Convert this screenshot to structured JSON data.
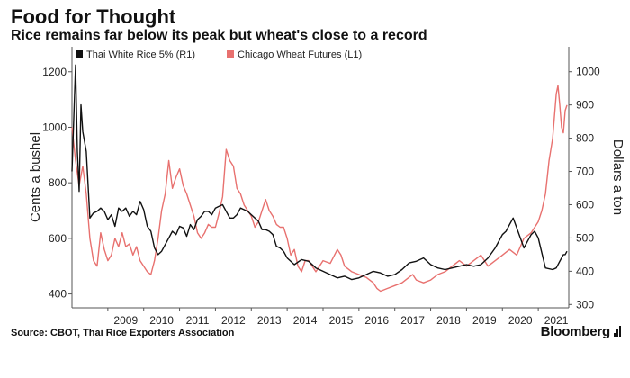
{
  "header": {
    "title": "Food for Thought",
    "subtitle": "Rice remains far below its peak but wheat's close to a record"
  },
  "footer": {
    "source": "Source: CBOT, Thai Rice Exporters Association",
    "brand": "Bloomberg"
  },
  "colors": {
    "rice": "#111111",
    "wheat": "#e8716f",
    "axis": "#555555"
  },
  "chart_data": {
    "type": "line",
    "title": "Food for Thought",
    "subtitle": "Rice remains far below its peak but wheat's close to a record",
    "x_range": [
      2008.0,
      2021.85
    ],
    "x_ticks": [
      2009,
      2010,
      2011,
      2012,
      2013,
      2014,
      2015,
      2016,
      2017,
      2018,
      2019,
      2020,
      2021
    ],
    "y_left": {
      "label": "Cents a bushel",
      "range": [
        350,
        1290
      ],
      "ticks": [
        400,
        600,
        800,
        1000,
        1200
      ]
    },
    "y_right": {
      "label": "Dollars a ton",
      "range": [
        290,
        1075
      ],
      "ticks": [
        300,
        400,
        500,
        600,
        700,
        800,
        900,
        1000
      ]
    },
    "legend": {
      "position": "top-left",
      "entries": [
        "Thai White Rice 5% (R1)",
        "Chicago Wheat Futures (L1)"
      ]
    },
    "series": [
      {
        "name": "Thai White Rice 5% (R1)",
        "axis": "right",
        "x": [
          2008.0,
          2008.1,
          2008.15,
          2008.2,
          2008.25,
          2008.3,
          2008.4,
          2008.5,
          2008.6,
          2008.7,
          2008.8,
          2008.9,
          2009.0,
          2009.1,
          2009.2,
          2009.3,
          2009.4,
          2009.5,
          2009.6,
          2009.7,
          2009.8,
          2009.9,
          2010.0,
          2010.1,
          2010.2,
          2010.3,
          2010.4,
          2010.5,
          2010.6,
          2010.7,
          2010.8,
          2010.9,
          2011.0,
          2011.1,
          2011.2,
          2011.3,
          2011.4,
          2011.5,
          2011.6,
          2011.7,
          2011.8,
          2011.9,
          2012.0,
          2012.1,
          2012.2,
          2012.3,
          2012.4,
          2012.5,
          2012.6,
          2012.7,
          2012.8,
          2012.9,
          2013.0,
          2013.1,
          2013.2,
          2013.3,
          2013.4,
          2013.5,
          2013.6,
          2013.7,
          2013.8,
          2013.9,
          2014.0,
          2014.2,
          2014.4,
          2014.6,
          2014.8,
          2015.0,
          2015.2,
          2015.4,
          2015.6,
          2015.8,
          2016.0,
          2016.2,
          2016.4,
          2016.6,
          2016.8,
          2017.0,
          2017.2,
          2017.4,
          2017.6,
          2017.8,
          2018.0,
          2018.2,
          2018.4,
          2018.6,
          2018.8,
          2019.0,
          2019.2,
          2019.4,
          2019.6,
          2019.8,
          2020.0,
          2020.1,
          2020.2,
          2020.3,
          2020.4,
          2020.5,
          2020.6,
          2020.7,
          2020.8,
          2020.9,
          2021.0,
          2021.2,
          2021.4,
          2021.5,
          2021.6,
          2021.7,
          2021.75,
          2021.8
        ],
        "values": [
          700,
          1020,
          760,
          640,
          900,
          820,
          760,
          560,
          575,
          580,
          590,
          580,
          555,
          570,
          535,
          590,
          580,
          590,
          565,
          580,
          570,
          610,
          585,
          535,
          520,
          470,
          450,
          460,
          480,
          500,
          520,
          510,
          535,
          530,
          505,
          540,
          525,
          555,
          565,
          580,
          580,
          570,
          590,
          595,
          600,
          580,
          560,
          560,
          570,
          590,
          585,
          580,
          570,
          560,
          550,
          525,
          525,
          520,
          510,
          475,
          470,
          460,
          440,
          420,
          435,
          430,
          410,
          400,
          390,
          380,
          385,
          375,
          380,
          390,
          400,
          395,
          385,
          390,
          405,
          425,
          430,
          440,
          420,
          410,
          405,
          410,
          415,
          420,
          415,
          420,
          440,
          470,
          510,
          520,
          540,
          560,
          530,
          500,
          470,
          490,
          510,
          520,
          500,
          410,
          405,
          410,
          430,
          450,
          450,
          460
        ]
      },
      {
        "name": "Chicago Wheat Futures (L1)",
        "axis": "left",
        "x": [
          2008.0,
          2008.1,
          2008.2,
          2008.3,
          2008.4,
          2008.5,
          2008.6,
          2008.7,
          2008.8,
          2008.9,
          2009.0,
          2009.1,
          2009.2,
          2009.3,
          2009.4,
          2009.5,
          2009.6,
          2009.7,
          2009.8,
          2009.9,
          2010.0,
          2010.1,
          2010.2,
          2010.3,
          2010.4,
          2010.5,
          2010.6,
          2010.7,
          2010.8,
          2010.9,
          2011.0,
          2011.1,
          2011.2,
          2011.3,
          2011.4,
          2011.5,
          2011.6,
          2011.7,
          2011.8,
          2011.9,
          2012.0,
          2012.1,
          2012.2,
          2012.3,
          2012.4,
          2012.5,
          2012.6,
          2012.7,
          2012.8,
          2012.9,
          2013.0,
          2013.1,
          2013.2,
          2013.3,
          2013.4,
          2013.5,
          2013.6,
          2013.7,
          2013.8,
          2013.9,
          2014.0,
          2014.1,
          2014.2,
          2014.3,
          2014.4,
          2014.5,
          2014.6,
          2014.7,
          2014.8,
          2014.9,
          2015.0,
          2015.2,
          2015.4,
          2015.5,
          2015.6,
          2015.8,
          2016.0,
          2016.2,
          2016.4,
          2016.5,
          2016.6,
          2016.8,
          2017.0,
          2017.2,
          2017.4,
          2017.5,
          2017.6,
          2017.8,
          2018.0,
          2018.2,
          2018.4,
          2018.6,
          2018.8,
          2019.0,
          2019.2,
          2019.4,
          2019.6,
          2019.8,
          2020.0,
          2020.2,
          2020.4,
          2020.6,
          2020.8,
          2021.0,
          2021.1,
          2021.2,
          2021.3,
          2021.4,
          2021.5,
          2021.55,
          2021.6,
          2021.65,
          2021.7,
          2021.75,
          2021.8
        ],
        "values": [
          1000,
          880,
          790,
          860,
          760,
          600,
          520,
          500,
          620,
          560,
          520,
          540,
          600,
          570,
          620,
          570,
          580,
          540,
          570,
          520,
          500,
          480,
          470,
          520,
          600,
          700,
          760,
          880,
          780,
          820,
          850,
          790,
          760,
          720,
          680,
          620,
          600,
          620,
          650,
          640,
          640,
          690,
          750,
          920,
          880,
          860,
          780,
          760,
          720,
          700,
          680,
          640,
          660,
          700,
          740,
          700,
          680,
          650,
          640,
          640,
          600,
          540,
          560,
          500,
          480,
          520,
          520,
          500,
          480,
          500,
          520,
          510,
          560,
          540,
          500,
          480,
          470,
          460,
          440,
          420,
          410,
          420,
          430,
          440,
          460,
          470,
          450,
          440,
          450,
          470,
          480,
          500,
          520,
          500,
          520,
          540,
          500,
          520,
          540,
          560,
          540,
          600,
          620,
          660,
          700,
          760,
          880,
          960,
          1120,
          1150,
          1080,
          1000,
          980,
          1060,
          1080
        ]
      }
    ]
  }
}
